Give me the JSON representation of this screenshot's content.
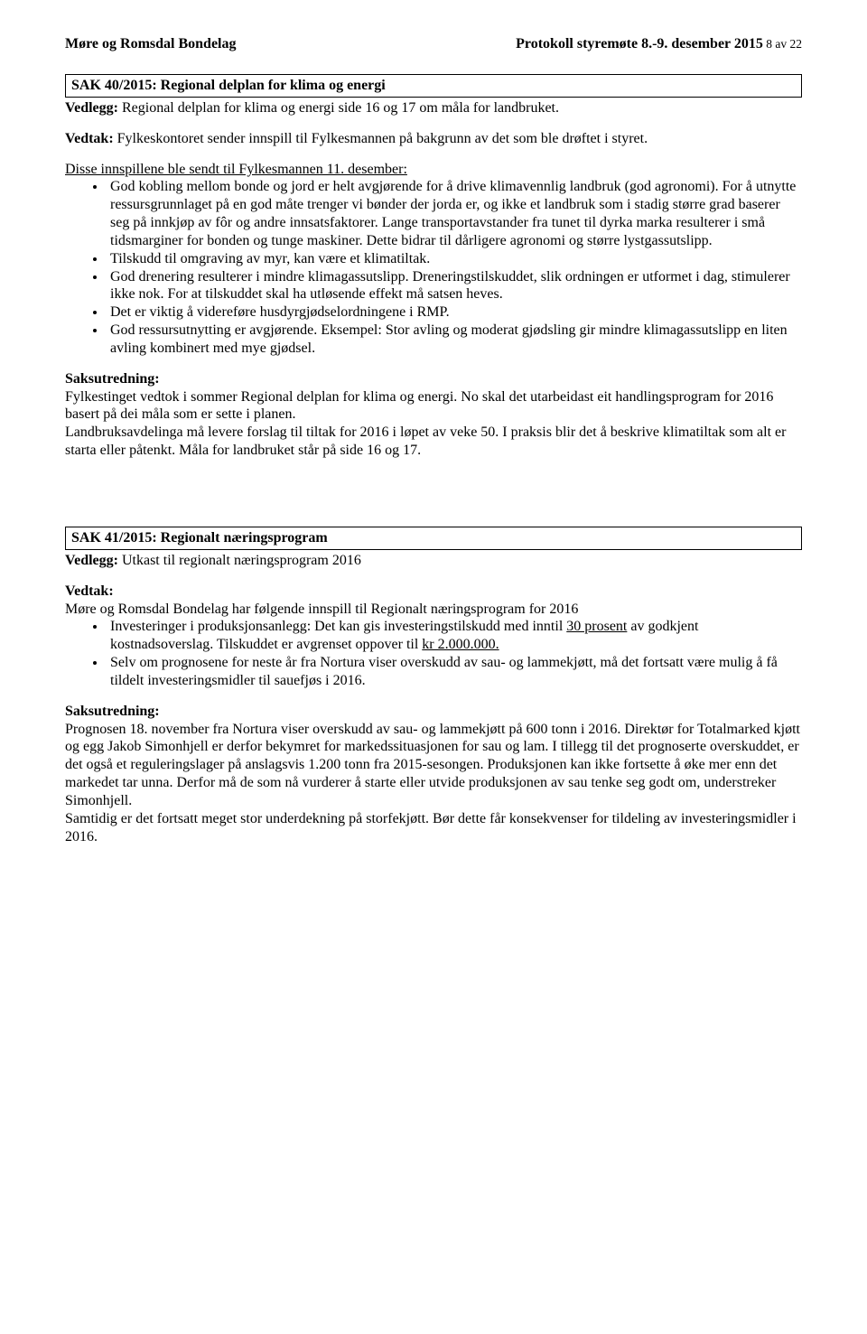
{
  "header": {
    "left": "Møre og Romsdal Bondelag",
    "right_bold": "Protokoll styremøte 8.-9. desember 2015",
    "right_small": " 8 av 22"
  },
  "sak40": {
    "title": "SAK 40/2015: Regional delplan for klima og energi",
    "vedlegg_label": "Vedlegg:",
    "vedlegg_text": " Regional delplan for klima og energi side 16 og 17 om måla for landbruket.",
    "vedtak_label": "Vedtak:",
    "vedtak_text": " Fylkeskontoret sender innspill til Fylkesmannen på bakgrunn av det som ble drøftet i styret.",
    "innspill_intro": "Disse innspillene ble sendt til Fylkesmannen 11. desember:",
    "bullets": [
      "God kobling mellom bonde og jord er helt avgjørende for å drive klimavennlig landbruk (god agronomi). For å utnytte ressursgrunnlaget på en god måte trenger vi bønder der jorda er, og ikke et landbruk som i stadig større grad baserer seg på innkjøp av fôr og andre innsatsfaktorer. Lange transportavstander fra tunet til dyrka marka resulterer i små tidsmarginer for bonden og tunge maskiner. Dette bidrar til dårligere agronomi og større lystgassutslipp.",
      "Tilskudd til omgraving av myr, kan være et klimatiltak.",
      "God drenering resulterer i mindre klimagassutslipp. Dreneringstilskuddet, slik ordningen er utformet i dag, stimulerer ikke nok. For at tilskuddet skal ha utløsende effekt må satsen heves.",
      "Det er viktig å videreføre husdyrgjødselordningene i RMP.",
      "God ressursutnytting er avgjørende. Eksempel: Stor avling og moderat gjødsling gir mindre klimagassutslipp en liten avling kombinert med mye gjødsel."
    ],
    "saksutredning_label": "Saksutredning:",
    "saksutredning_text": "Fylkestinget vedtok i sommer Regional delplan for klima og energi. No skal det utarbeidast eit handlingsprogram for 2016 basert på dei måla som er sette i planen.\nLandbruksavdelinga må levere forslag til tiltak for 2016 i løpet av veke 50. I praksis blir det å beskrive klimatiltak som alt er starta eller påtenkt. Måla for landbruket står på side 16 og 17."
  },
  "sak41": {
    "title": "SAK 41/2015: Regionalt næringsprogram",
    "vedlegg_label": "Vedlegg:",
    "vedlegg_text": " Utkast til regionalt næringsprogram 2016",
    "vedtak_label": "Vedtak:",
    "vedtak_intro": "Møre og Romsdal Bondelag har følgende innspill til Regionalt næringsprogram for 2016",
    "bullet1_pre": "Investeringer i produksjonsanlegg: Det kan gis investeringstilskudd med inntil ",
    "bullet1_u1": "30 prosent",
    "bullet1_mid": " av godkjent kostnadsoverslag. Tilskuddet er avgrenset oppover til ",
    "bullet1_u2": "kr 2.000.000.",
    "bullet2": "Selv om prognosene for neste år fra Nortura viser overskudd av sau- og lammekjøtt, må det fortsatt være mulig å få tildelt investeringsmidler til sauefjøs i 2016.",
    "saksutredning_label": "Saksutredning:",
    "saksutredning_text": "Prognosen 18. november fra Nortura viser overskudd av sau- og lammekjøtt på 600 tonn i 2016. Direktør for Totalmarked kjøtt og egg Jakob Simonhjell er derfor bekymret for markedssituasjonen for sau og lam. I tillegg til det prognoserte overskuddet, er det også et reguleringslager på anslagsvis 1.200 tonn fra 2015-sesongen. Produksjonen kan ikke fortsette å øke mer enn det markedet tar unna. Derfor må de som nå vurderer å starte eller utvide produksjonen av sau tenke seg godt om, understreker Simonhjell.\nSamtidig er det fortsatt meget stor underdekning på storfekjøtt. Bør dette får konsekvenser for tildeling av investeringsmidler i 2016."
  }
}
